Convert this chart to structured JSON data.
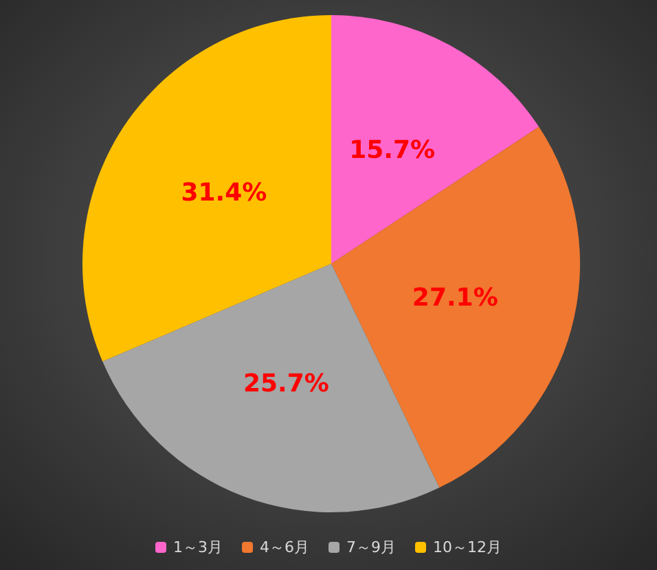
{
  "chart_data": {
    "type": "pie",
    "categories": [
      "1～3月",
      "4～6月",
      "7～9月",
      "10～12月"
    ],
    "values": [
      15.7,
      27.1,
      25.7,
      31.4
    ],
    "colors": [
      "#ff66cc",
      "#f07830",
      "#a6a6a6",
      "#ffc000"
    ],
    "value_labels": [
      "15.7%",
      "27.1%",
      "25.7%",
      "31.4%"
    ],
    "legend": "bottom"
  }
}
